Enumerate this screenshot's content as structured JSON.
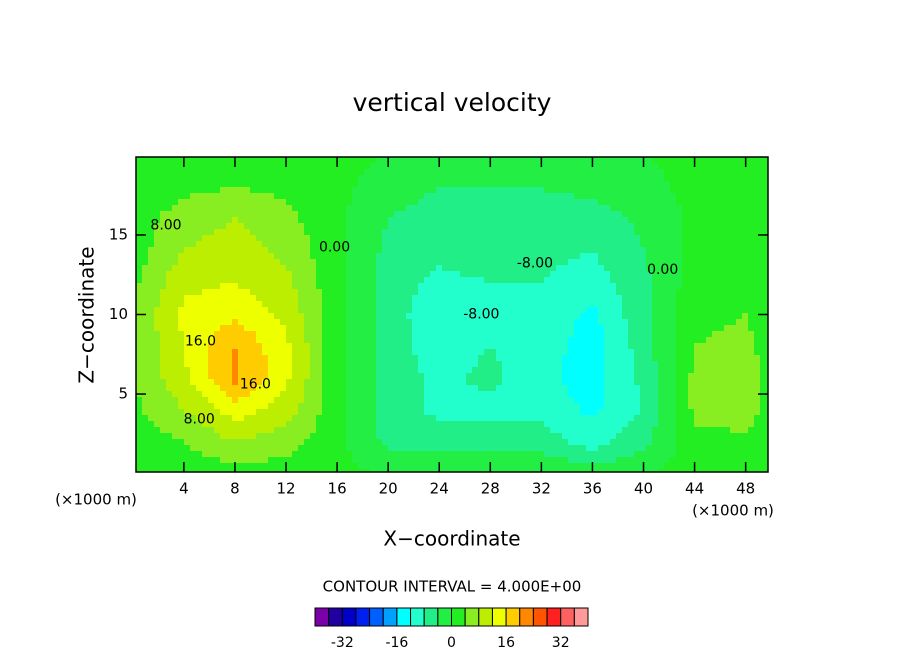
{
  "chart_data": {
    "type": "contour",
    "title": "vertical velocity",
    "x_label": "X−coordinate",
    "y_label": "Z−coordinate",
    "x_unit": "(×1000 m)",
    "contour_interval": "CONTOUR INTERVAL = 4.000E+00",
    "xlim": [
      0.25,
      49.75
    ],
    "ylim": [
      0.1,
      19.9
    ],
    "xticks": [
      4,
      8,
      12,
      16,
      20,
      24,
      28,
      32,
      36,
      40,
      44,
      48
    ],
    "yticks": [
      5,
      10,
      15
    ],
    "x": [
      0,
      4,
      8,
      12,
      16,
      20,
      24,
      28,
      32,
      36,
      40,
      44,
      48,
      50
    ],
    "y": [
      0,
      2,
      4,
      6,
      8,
      10,
      12,
      14,
      16,
      18,
      20
    ],
    "z": [
      [
        1,
        1,
        2,
        2,
        1,
        0,
        0,
        0,
        0,
        -2,
        0,
        1,
        1,
        1
      ],
      [
        2,
        4,
        8,
        6,
        1,
        -5,
        -6,
        -6,
        -6,
        -10,
        -5,
        3,
        3,
        1
      ],
      [
        3,
        8,
        14,
        10,
        1,
        -6,
        -9,
        -9,
        -9,
        -13,
        -8,
        5,
        6,
        2
      ],
      [
        4,
        11,
        21,
        13,
        1,
        -6,
        -9,
        -7,
        -11,
        -14,
        -7,
        5,
        7,
        2
      ],
      [
        4,
        12,
        20,
        13,
        1,
        -6,
        -10,
        -8,
        -10,
        -14,
        -6,
        4,
        5,
        2
      ],
      [
        4,
        13,
        15,
        11,
        1,
        -6,
        -11,
        -9,
        -9,
        -13,
        -5,
        3,
        4,
        2
      ],
      [
        3,
        11,
        12,
        9,
        1,
        -6,
        -9,
        -8,
        -8,
        -10,
        -5,
        2,
        2,
        1
      ],
      [
        2,
        8,
        10,
        7,
        1,
        -5,
        -7,
        -6,
        -7,
        -8,
        -4,
        1,
        1,
        1
      ],
      [
        2,
        6,
        8,
        5,
        1,
        -4,
        -6,
        -6,
        -5,
        -6,
        -3,
        1,
        1,
        1
      ],
      [
        1,
        3,
        4,
        3,
        1,
        -2,
        -4,
        -4,
        -4,
        -3,
        -1,
        1,
        1,
        1
      ],
      [
        1,
        1,
        1,
        1,
        1,
        0,
        -1,
        -1,
        -1,
        0,
        0,
        1,
        1,
        1
      ]
    ],
    "annotations": [
      {
        "text": "8.00",
        "x": 2.6,
        "y": 15.6
      },
      {
        "text": "0.00",
        "x": 15.8,
        "y": 14.2
      },
      {
        "text": "16.0",
        "x": 5.3,
        "y": 8.3
      },
      {
        "text": "16.0",
        "x": 9.6,
        "y": 5.6
      },
      {
        "text": "8.00",
        "x": 5.2,
        "y": 3.4
      },
      {
        "text": "-8.00",
        "x": 27.3,
        "y": 10.0
      },
      {
        "text": "-8.00",
        "x": 31.5,
        "y": 13.2
      },
      {
        "text": "0.00",
        "x": 41.5,
        "y": 12.8
      }
    ],
    "colorbar": {
      "levels": [
        -40,
        -36,
        -32,
        -28,
        -24,
        -20,
        -16,
        -12,
        -8,
        -4,
        0,
        4,
        8,
        12,
        16,
        20,
        24,
        28,
        32,
        36,
        40
      ],
      "colors": [
        "#7a00a8",
        "#2000a0",
        "#0000c8",
        "#0020f0",
        "#0060ff",
        "#00a0ff",
        "#00ffff",
        "#22ffcc",
        "#22ee88",
        "#22ee44",
        "#22ee22",
        "#88ee22",
        "#bbee00",
        "#eeff00",
        "#ffcc00",
        "#ff8800",
        "#ff5500",
        "#ff2020",
        "#ff6060",
        "#ff9a9a"
      ],
      "ticks": [
        -32,
        -16,
        0,
        16,
        32
      ]
    }
  }
}
